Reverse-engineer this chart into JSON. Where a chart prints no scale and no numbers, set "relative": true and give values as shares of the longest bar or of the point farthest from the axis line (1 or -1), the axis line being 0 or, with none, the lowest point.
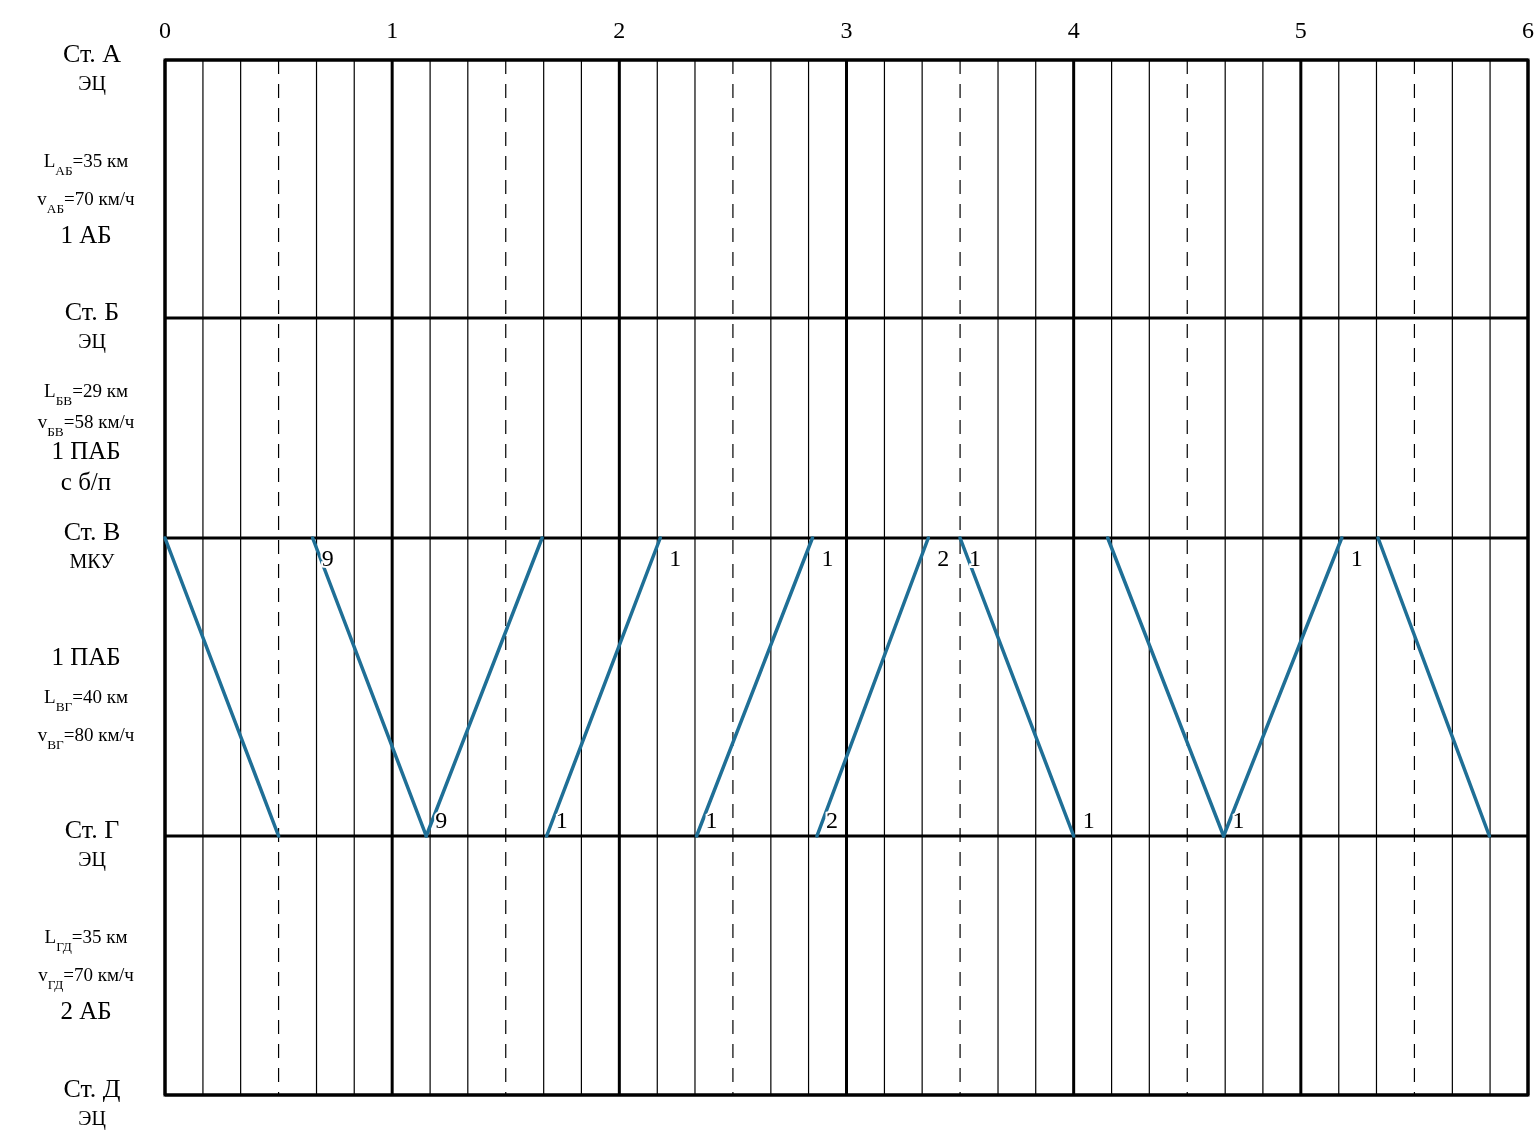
{
  "chart_data": {
    "type": "line",
    "relative": true,
    "xlim": [
      0,
      6
    ],
    "xticks": [
      0,
      {
        "value": 0.167,
        "label": null
      },
      {
        "value": 0.333,
        "label": null
      },
      {
        "value": 0.5,
        "label": null
      },
      {
        "value": 0.667,
        "label": null
      },
      {
        "value": 0.833,
        "label": null
      },
      1,
      {
        "value": 1.167,
        "label": null
      },
      {
        "value": 1.333,
        "label": null
      },
      {
        "value": 1.5,
        "label": null
      },
      {
        "value": 1.667,
        "label": null
      },
      {
        "value": 1.833,
        "label": null
      },
      2,
      {
        "value": 2.167,
        "label": null
      },
      {
        "value": 2.333,
        "label": null
      },
      {
        "value": 2.5,
        "label": null
      },
      {
        "value": 2.667,
        "label": null
      },
      {
        "value": 2.833,
        "label": null
      },
      3,
      {
        "value": 3.167,
        "label": null
      },
      {
        "value": 3.333,
        "label": null
      },
      {
        "value": 3.5,
        "label": null
      },
      {
        "value": 3.667,
        "label": null
      },
      {
        "value": 3.833,
        "label": null
      },
      4,
      {
        "value": 4.167,
        "label": null
      },
      {
        "value": 4.333,
        "label": null
      },
      {
        "value": 4.5,
        "label": null
      },
      {
        "value": 4.667,
        "label": null
      },
      {
        "value": 4.833,
        "label": null
      },
      5,
      {
        "value": 5.167,
        "label": null
      },
      {
        "value": 5.333,
        "label": null
      },
      {
        "value": 5.5,
        "label": null
      },
      {
        "value": 5.667,
        "label": null
      },
      {
        "value": 5.833,
        "label": null
      },
      6
    ],
    "grid": true,
    "marker": "none",
    "line_style": "solid",
    "series": [
      {
        "color": "#1f6f96",
        "x": [
          0,
          0.5
        ],
        "values": [
          1,
          0
        ]
      },
      {
        "color": "#1f6f96",
        "x": [
          0.65,
          1.15
        ],
        "values": [
          1,
          0
        ]
      },
      {
        "color": "#1f6f96",
        "x": [
          1.15,
          1.66
        ],
        "values": [
          0,
          1
        ]
      },
      {
        "color": "#1f6f96",
        "x": [
          1.68,
          2.18
        ],
        "values": [
          0,
          1
        ]
      },
      {
        "color": "#1f6f96",
        "x": [
          2.34,
          2.85
        ],
        "values": [
          0,
          1
        ]
      },
      {
        "color": "#1f6f96",
        "x": [
          2.87,
          3.36
        ],
        "values": [
          0,
          1
        ]
      },
      {
        "color": "#1f6f96",
        "x": [
          3.5,
          4.0
        ],
        "values": [
          1,
          0
        ]
      },
      {
        "color": "#1f6f96",
        "x": [
          4.15,
          4.66
        ],
        "values": [
          1,
          0
        ]
      },
      {
        "color": "#1f6f96",
        "x": [
          4.66,
          5.18
        ],
        "values": [
          0,
          1
        ]
      },
      {
        "color": "#1f6f96",
        "x": [
          5.34,
          5.83
        ],
        "values": [
          1,
          0
        ]
      }
    ],
    "annotations": [
      "Ст. А\nЭЦ",
      "L$_{АБ}$=35 км\nv$_{АБ}$=70 км/ч\n1 АБ",
      "Ст. Б\nЭЦ",
      "L$_{БВ}$=29 км\nv$_{БВ}$=58 км/ч\n1 ПАБ\nс б/п",
      "Ст. В\nМКУ",
      "1 ПАБ\nL$_{ВГ}$=40 км\nv$_{ВГ}$=80 км/ч",
      "Ст. Г\nЭЦ",
      "L$_{ГД}$=35 км\nv$_{ГД}$=70 км/ч\n2 АБ",
      "Ст. Д\nЭЦ",
      {
        "text": "9",
        "x": 0.65,
        "y": 1
      },
      {
        "text": "1",
        "x": 2.18,
        "y": 1
      },
      {
        "text": "1",
        "x": 2.85,
        "y": 1
      },
      {
        "text": "2",
        "x": 3.36,
        "y": 1
      },
      {
        "text": "1",
        "x": 3.5,
        "y": 1
      },
      {
        "text": "1",
        "x": 5.18,
        "y": 1
      },
      {
        "text": "9",
        "x": 1.15,
        "y": 0
      },
      {
        "text": "1",
        "x": 1.68,
        "y": 0
      },
      {
        "text": "1",
        "x": 2.34,
        "y": 0
      },
      {
        "text": "2",
        "x": 2.87,
        "y": 0
      },
      {
        "text": "1",
        "x": 4.0,
        "y": 0
      },
      {
        "text": "1",
        "x": 4.66,
        "y": 0
      }
    ]
  }
}
